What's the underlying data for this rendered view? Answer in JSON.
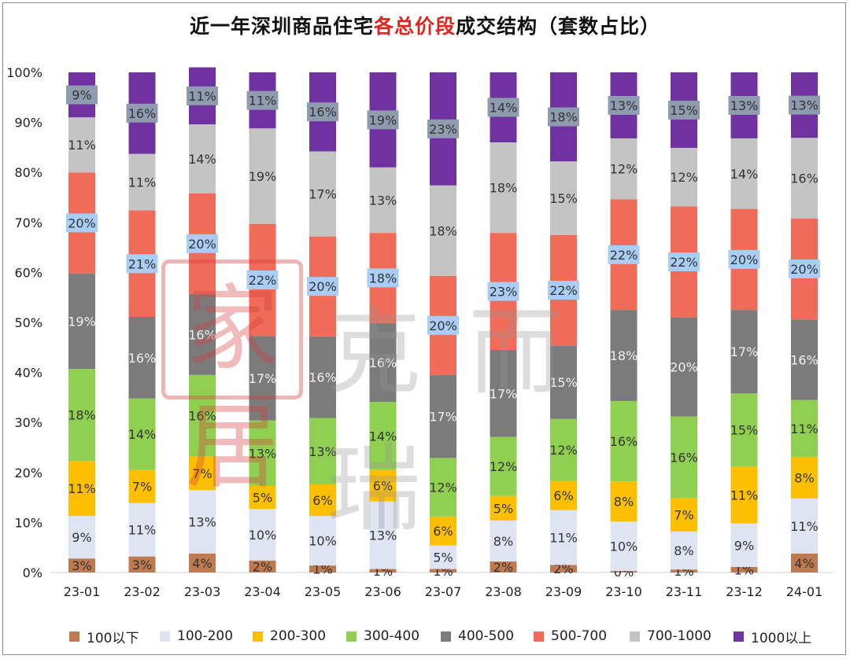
{
  "title": {
    "prefix": "近一年深圳商品住宅",
    "highlight": "各总价段",
    "suffix": "成交结构（套数占比）",
    "highlight_color": "#e0231c"
  },
  "watermark": {
    "seal": "家居",
    "text": "克而瑞"
  },
  "chart_data": {
    "type": "bar",
    "stacked": true,
    "title": "近一年深圳商品住宅各总价段成交结构（套数占比）",
    "categories": [
      "23-01",
      "23-02",
      "23-03",
      "23-04",
      "23-05",
      "23-06",
      "23-07",
      "23-08",
      "23-09",
      "23-10",
      "23-11",
      "23-12",
      "24-01"
    ],
    "y_ticks": [
      "0%",
      "10%",
      "20%",
      "30%",
      "40%",
      "50%",
      "60%",
      "70%",
      "80%",
      "90%",
      "100%"
    ],
    "ylim": [
      0,
      100
    ],
    "grid": false,
    "legend_position": "bottom",
    "series": [
      {
        "name": "100以下",
        "color": "#c07a50",
        "label_bg": "",
        "values": [
          2.8,
          3.2,
          3.8,
          2.4,
          1.4,
          0.7,
          0.7,
          2.2,
          1.5,
          0.3,
          0.6,
          1.1,
          3.8
        ],
        "labels": [
          "3%",
          "3%",
          "4%",
          "2%",
          "1%",
          "1%",
          "1%",
          "2%",
          "2%",
          "0%",
          "1%",
          "1%",
          "4%"
        ]
      },
      {
        "name": "100-200",
        "color": "#dfe4f2",
        "label_bg": "",
        "values": [
          8.5,
          10.7,
          12.7,
          10.3,
          9.9,
          13.5,
          4.7,
          8.2,
          11.0,
          9.9,
          7.6,
          8.7,
          11.0
        ],
        "labels": [
          "9%",
          "11%",
          "13%",
          "10%",
          "10%",
          "13%",
          "5%",
          "8%",
          "11%",
          "10%",
          "8%",
          "9%",
          "11%"
        ]
      },
      {
        "name": "200-300",
        "color": "#fcc000",
        "label_bg": "",
        "values": [
          11.0,
          6.6,
          6.7,
          4.6,
          6.3,
          6.3,
          5.8,
          4.9,
          5.8,
          8.0,
          6.7,
          11.4,
          8.3
        ],
        "labels": [
          "11%",
          "7%",
          "7%",
          "5%",
          "6%",
          "6%",
          "6%",
          "5%",
          "6%",
          "8%",
          "7%",
          "11%",
          "8%"
        ]
      },
      {
        "name": "300-400",
        "color": "#90d050",
        "label_bg": "",
        "values": [
          18.4,
          14.3,
          16.3,
          13.1,
          13.3,
          13.6,
          11.7,
          11.8,
          12.4,
          16.1,
          16.3,
          14.6,
          11.4
        ],
        "labels": [
          "18%",
          "14%",
          "16%",
          "13%",
          "13%",
          "14%",
          "12%",
          "12%",
          "12%",
          "16%",
          "16%",
          "15%",
          "11%"
        ]
      },
      {
        "name": "400-500",
        "color": "#7b7b7b",
        "label_bg": "",
        "values": [
          19.1,
          16.3,
          16.2,
          16.9,
          16.3,
          15.8,
          16.6,
          17.4,
          14.7,
          18.2,
          19.8,
          16.7,
          16.1
        ],
        "labels": [
          "19%",
          "16%",
          "16%",
          "17%",
          "16%",
          "16%",
          "17%",
          "17%",
          "15%",
          "18%",
          "20%",
          "17%",
          "16%"
        ]
      },
      {
        "name": "500-700",
        "color": "#f06b58",
        "label_bg": "#a9cdf4",
        "values": [
          20.2,
          21.3,
          20.1,
          22.4,
          20.0,
          18.0,
          19.8,
          23.4,
          22.1,
          22.1,
          22.2,
          20.2,
          20.2
        ],
        "labels": [
          "20%",
          "21%",
          "20%",
          "22%",
          "20%",
          "18%",
          "20%",
          "23%",
          "22%",
          "22%",
          "22%",
          "20%",
          "20%"
        ]
      },
      {
        "name": "700-1000",
        "color": "#c4c4c4",
        "label_bg": "",
        "values": [
          11.0,
          11.3,
          13.8,
          19.1,
          17.0,
          13.1,
          18.1,
          18.1,
          14.7,
          12.2,
          11.7,
          14.1,
          16.1
        ],
        "labels": [
          "11%",
          "11%",
          "14%",
          "19%",
          "17%",
          "13%",
          "18%",
          "18%",
          "15%",
          "12%",
          "12%",
          "14%",
          "16%"
        ]
      },
      {
        "name": "1000以上",
        "color": "#7032a0",
        "label_bg": "#8f9bae",
        "values": [
          9.0,
          16.3,
          11.4,
          11.2,
          15.8,
          19.0,
          22.6,
          14.0,
          17.8,
          13.2,
          15.1,
          13.2,
          13.1
        ],
        "labels": [
          "9%",
          "16%",
          "11%",
          "11%",
          "16%",
          "19%",
          "23%",
          "14%",
          "18%",
          "13%",
          "15%",
          "13%",
          "13%"
        ]
      }
    ]
  }
}
